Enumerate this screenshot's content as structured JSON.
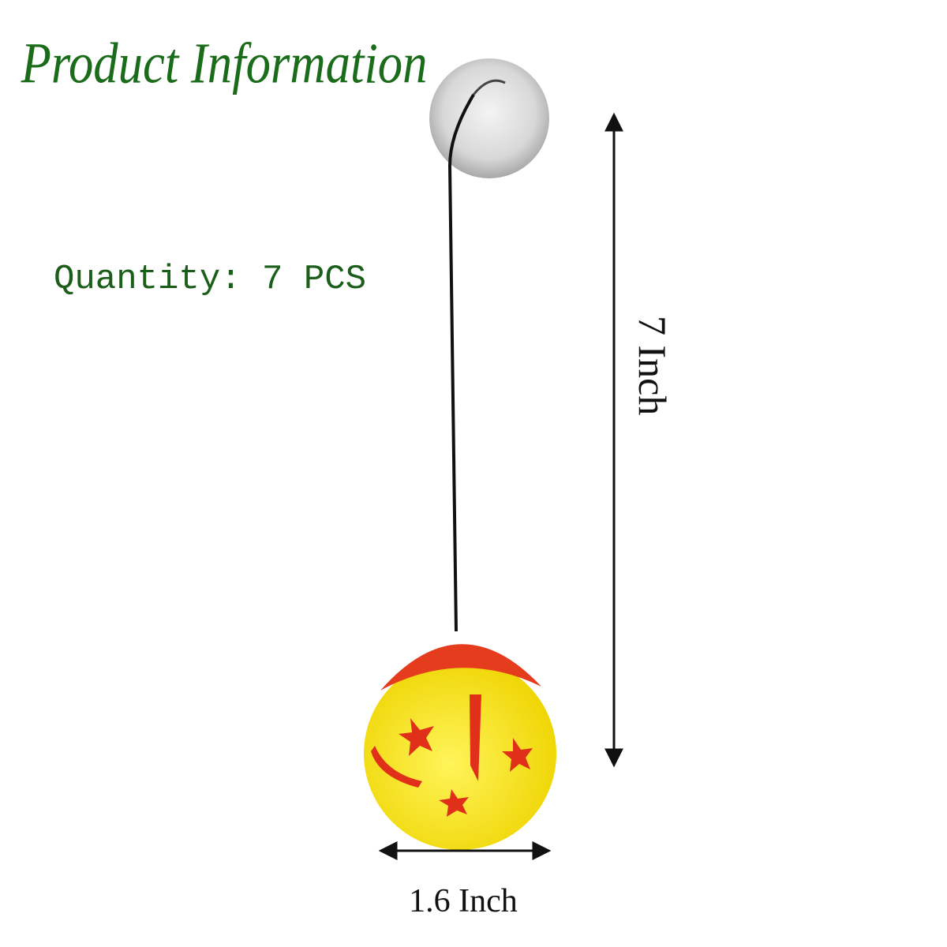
{
  "title": "Product Information",
  "quantity": "Quantity: 7 PCS",
  "height_label": "7 Inch",
  "width_label": "1.6 Inch"
}
